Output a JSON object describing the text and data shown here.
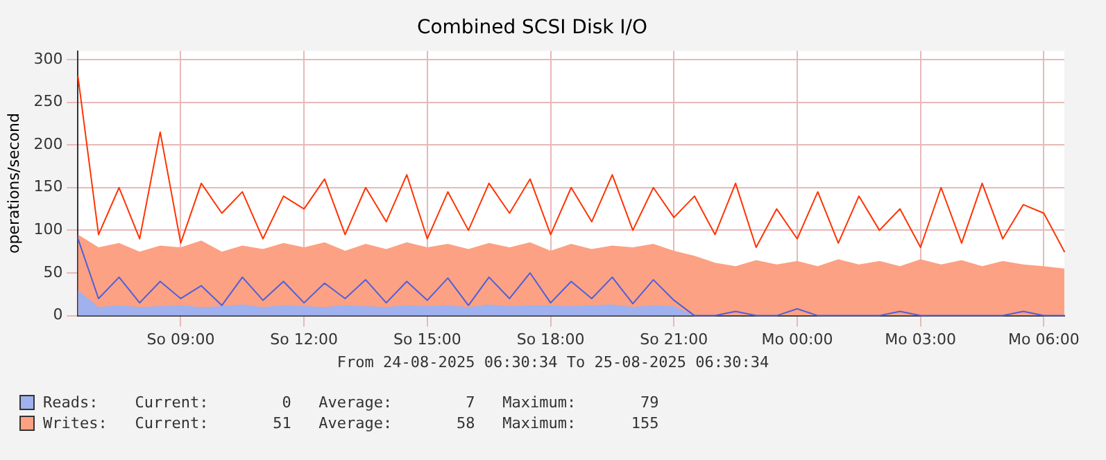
{
  "chart_data": {
    "type": "area",
    "title": "Combined SCSI Disk I/O",
    "ylabel": "operations/second",
    "categories": [
      null,
      null,
      null,
      null,
      null,
      "So 09:00",
      null,
      null,
      null,
      null,
      null,
      "So 12:00",
      null,
      null,
      null,
      null,
      null,
      "So 15:00",
      null,
      null,
      null,
      null,
      null,
      "So 18:00",
      null,
      null,
      null,
      null,
      null,
      "So 21:00",
      null,
      null,
      null,
      null,
      null,
      "Mo 00:00",
      null,
      null,
      null,
      null,
      null,
      "Mo 03:00",
      null,
      null,
      null,
      null,
      null,
      "Mo 06:00",
      null
    ],
    "series": [
      {
        "name": "Writes:",
        "type": "area",
        "color": "#fca183",
        "values": [
          95,
          80,
          85,
          75,
          82,
          80,
          88,
          75,
          82,
          78,
          85,
          80,
          86,
          76,
          84,
          78,
          86,
          80,
          84,
          78,
          85,
          80,
          86,
          76,
          84,
          78,
          82,
          80,
          84,
          76,
          70,
          62,
          58,
          65,
          60,
          64,
          58,
          66,
          60,
          64,
          58,
          66,
          60,
          65,
          58,
          64,
          60,
          58,
          55
        ]
      },
      {
        "type": "line",
        "color": "#ff3300",
        "values": [
          280,
          95,
          150,
          90,
          215,
          85,
          155,
          120,
          145,
          90,
          140,
          125,
          160,
          95,
          150,
          110,
          165,
          90,
          145,
          100,
          155,
          120,
          160,
          95,
          150,
          110,
          165,
          100,
          150,
          115,
          140,
          95,
          155,
          80,
          125,
          90,
          145,
          85,
          140,
          100,
          125,
          80,
          150,
          85,
          155,
          90,
          130,
          120,
          75
        ]
      },
      {
        "name": "Reads:",
        "type": "area",
        "color": "#9fb1ee",
        "values": [
          30,
          10,
          12,
          10,
          11,
          12,
          10,
          11,
          13,
          10,
          12,
          11,
          10,
          12,
          11,
          10,
          12,
          11,
          12,
          10,
          13,
          11,
          12,
          12,
          11,
          12,
          13,
          10,
          12,
          11,
          0,
          0,
          0,
          0,
          0,
          0,
          0,
          0,
          0,
          0,
          0,
          0,
          0,
          0,
          0,
          0,
          0,
          0,
          0
        ]
      },
      {
        "type": "line",
        "color": "#4d5fdc",
        "values": [
          90,
          20,
          45,
          15,
          40,
          20,
          35,
          12,
          45,
          18,
          40,
          15,
          38,
          20,
          42,
          15,
          40,
          18,
          44,
          12,
          45,
          20,
          50,
          15,
          40,
          20,
          45,
          14,
          42,
          18,
          0,
          0,
          5,
          0,
          0,
          8,
          0,
          0,
          0,
          0,
          5,
          0,
          0,
          0,
          0,
          0,
          5,
          0,
          0
        ]
      }
    ],
    "ylim": [
      0,
      310
    ],
    "yticks": [
      0,
      50,
      100,
      150,
      200,
      250,
      300
    ],
    "grid": true,
    "legend": "bottom left",
    "annotations": [
      "From 24-08-2025 06:30:34 To 25-08-2025 06:30:34",
      "Current:       51   Average:       58   Maximum:      155",
      "Current:        0   Average:        7   Maximum:       79"
    ]
  }
}
